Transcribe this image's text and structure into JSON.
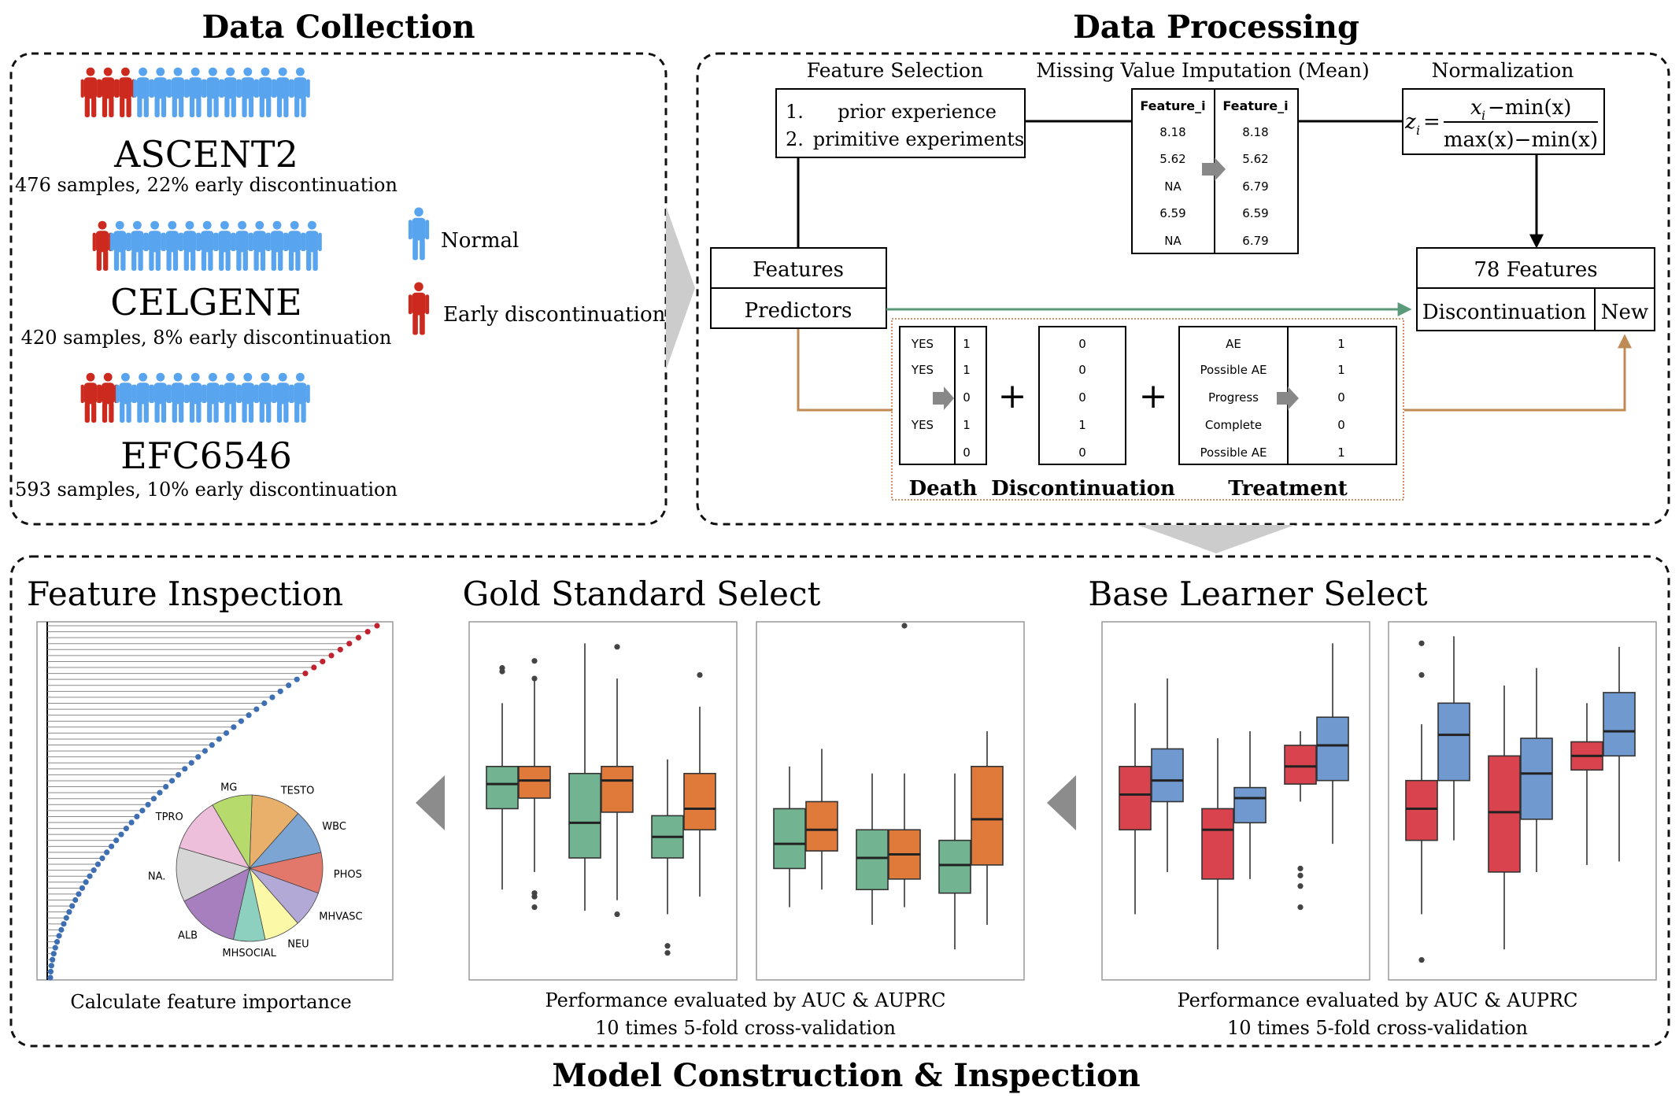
{
  "colors": {
    "early": "#cc2a1e",
    "normal": "#59a4ee",
    "green_box": "#72b391",
    "orange_box": "#e07a3a",
    "red_box": "#d8434d",
    "blue_box": "#6f99cf",
    "pred_green": "#5a9a7a",
    "pred_brown": "#c08a55",
    "gray_arrow": "#cccccc"
  },
  "collection": {
    "title": "Data Collection",
    "datasets": [
      {
        "name": "ASCENT2",
        "desc": "476 samples, 22% early discontinuation",
        "early": 3,
        "normal": 10
      },
      {
        "name": "CELGENE",
        "desc": "420 samples, 8% early discontinuation",
        "early": 1,
        "normal": 12
      },
      {
        "name": "EFC6546",
        "desc": "593 samples, 10% early discontinuation",
        "early": 2,
        "normal": 11
      }
    ],
    "legend": {
      "normal": "Normal",
      "early": "Early discontinuation"
    }
  },
  "processing": {
    "title": "Data Processing",
    "feature_selection": {
      "title": "Feature Selection",
      "items": [
        "1.",
        "prior experience",
        "2.",
        "primitive experiments"
      ]
    },
    "imputation": {
      "title": "Missing Value Imputation (Mean)",
      "col1": "Feature_i",
      "col2": "Feature_i",
      "before": [
        "8.18",
        "5.62",
        "NA",
        "6.59",
        "NA"
      ],
      "after": [
        "8.18",
        "5.62",
        "6.79",
        "6.59",
        "6.79"
      ]
    },
    "normalization": {
      "title": "Normalization",
      "z": "z",
      "sub": "i",
      "eq": "=",
      "num": "x",
      "num_sub": "i",
      "num_rest": "−min(x)",
      "den": "max(x)−min(x)"
    },
    "features_box": {
      "features": "Features",
      "predictors": "Predictors"
    },
    "output_box": {
      "features": "78 Features",
      "discontinuation": "Discontinuation",
      "new": "New"
    },
    "death": {
      "label": "Death",
      "left": [
        "YES",
        "YES",
        "",
        "YES",
        ""
      ],
      "right": [
        "1",
        "1",
        "0",
        "1",
        "0"
      ]
    },
    "discontinuation": {
      "label": "Discontinuation",
      "values": [
        "0",
        "0",
        "0",
        "1",
        "0"
      ]
    },
    "treatment": {
      "label": "Treatment",
      "left": [
        "AE",
        "Possible AE",
        "Progress",
        "Complete",
        "Possible AE"
      ],
      "right": [
        "1",
        "1",
        "0",
        "0",
        "1"
      ]
    },
    "plus": "+"
  },
  "model": {
    "title": "Model Construction & Inspection",
    "inspection": {
      "title": "Feature Inspection",
      "caption": "Calculate feature importance"
    },
    "gold": {
      "title": "Gold Standard Select",
      "caption1": "Performance evaluated by AUC & AUPRC",
      "caption2": "10 times 5-fold cross-validation"
    },
    "base": {
      "title": "Base Learner Select",
      "caption1": "Performance evaluated by AUC & AUPRC",
      "caption2": "10 times 5-fold cross-validation"
    }
  },
  "chart_data": [
    {
      "type": "scatter",
      "name": "feature-importance",
      "title": "",
      "point_count": 60,
      "highlighted_red_count": 9
    },
    {
      "type": "pie",
      "name": "feature-groups",
      "labels": [
        "TESTO",
        "WBC",
        "PHOS",
        "MHVASC",
        "NEU",
        "MHSOCIAL",
        "ALB",
        "NA.",
        "TPRO",
        "MG"
      ],
      "values": [
        11,
        10,
        9,
        8,
        8,
        7,
        14,
        12,
        12,
        9
      ],
      "colors": [
        "#e9b06c",
        "#7ca5d3",
        "#e2776b",
        "#b3a9d6",
        "#fbf9a8",
        "#8ed0c0",
        "#a77fbf",
        "#d6d6d6",
        "#eebfda",
        "#b7da6c"
      ]
    },
    {
      "type": "box",
      "name": "gold-1",
      "series": [
        {
          "color": "green",
          "boxes": [
            {
              "q1": 0.48,
              "med": 0.55,
              "q3": 0.6,
              "wlo": 0.25,
              "whi": 0.78,
              "out": [
                0.87,
                0.88
              ]
            },
            {
              "q1": 0.34,
              "med": 0.44,
              "q3": 0.58,
              "wlo": 0.19,
              "whi": 0.95,
              "out": []
            },
            {
              "q1": 0.34,
              "med": 0.4,
              "q3": 0.46,
              "wlo": 0.18,
              "whi": 0.62,
              "out": [
                0.09,
                0.07
              ]
            }
          ]
        },
        {
          "color": "orange",
          "boxes": [
            {
              "q1": 0.51,
              "med": 0.56,
              "q3": 0.6,
              "wlo": 0.3,
              "whi": 0.85,
              "out": [
                0.9,
                0.85,
                0.2,
                0.23,
                0.24
              ]
            },
            {
              "q1": 0.47,
              "med": 0.56,
              "q3": 0.6,
              "wlo": 0.22,
              "whi": 0.85,
              "out": [
                0.94,
                0.18
              ]
            },
            {
              "q1": 0.42,
              "med": 0.48,
              "q3": 0.58,
              "wlo": 0.23,
              "whi": 0.77,
              "out": [
                0.86
              ]
            }
          ]
        }
      ]
    },
    {
      "type": "box",
      "name": "gold-2",
      "series": [
        {
          "color": "green",
          "boxes": [
            {
              "q1": 0.31,
              "med": 0.38,
              "q3": 0.48,
              "wlo": 0.2,
              "whi": 0.6,
              "out": []
            },
            {
              "q1": 0.25,
              "med": 0.34,
              "q3": 0.42,
              "wlo": 0.15,
              "whi": 0.58,
              "out": []
            },
            {
              "q1": 0.24,
              "med": 0.32,
              "q3": 0.39,
              "wlo": 0.08,
              "whi": 0.58,
              "out": []
            }
          ]
        },
        {
          "color": "orange",
          "boxes": [
            {
              "q1": 0.36,
              "med": 0.42,
              "q3": 0.5,
              "wlo": 0.25,
              "whi": 0.65,
              "out": []
            },
            {
              "q1": 0.28,
              "med": 0.35,
              "q3": 0.42,
              "wlo": 0.2,
              "whi": 0.58,
              "out": [
                1.0
              ]
            },
            {
              "q1": 0.32,
              "med": 0.45,
              "q3": 0.6,
              "wlo": 0.15,
              "whi": 0.7,
              "out": []
            }
          ]
        }
      ]
    },
    {
      "type": "box",
      "name": "base-1",
      "series": [
        {
          "color": "red",
          "boxes": [
            {
              "q1": 0.42,
              "med": 0.52,
              "q3": 0.6,
              "wlo": 0.18,
              "whi": 0.78,
              "out": []
            },
            {
              "q1": 0.28,
              "med": 0.42,
              "q3": 0.48,
              "wlo": 0.08,
              "whi": 0.68,
              "out": []
            },
            {
              "q1": 0.55,
              "med": 0.6,
              "q3": 0.66,
              "wlo": 0.5,
              "whi": 0.7,
              "out": [
                0.29,
                0.31,
                0.26,
                0.2
              ]
            }
          ]
        },
        {
          "color": "blue",
          "boxes": [
            {
              "q1": 0.5,
              "med": 0.56,
              "q3": 0.65,
              "wlo": 0.3,
              "whi": 0.85,
              "out": []
            },
            {
              "q1": 0.44,
              "med": 0.51,
              "q3": 0.54,
              "wlo": 0.28,
              "whi": 0.7,
              "out": []
            },
            {
              "q1": 0.56,
              "med": 0.66,
              "q3": 0.74,
              "wlo": 0.38,
              "whi": 0.95,
              "out": []
            }
          ]
        }
      ]
    },
    {
      "type": "box",
      "name": "base-2",
      "series": [
        {
          "color": "red",
          "boxes": [
            {
              "q1": 0.39,
              "med": 0.48,
              "q3": 0.56,
              "wlo": 0.18,
              "whi": 0.72,
              "out": [
                0.95,
                0.86,
                0.05
              ]
            },
            {
              "q1": 0.3,
              "med": 0.47,
              "q3": 0.63,
              "wlo": 0.08,
              "whi": 0.83,
              "out": []
            },
            {
              "q1": 0.59,
              "med": 0.63,
              "q3": 0.67,
              "wlo": 0.32,
              "whi": 0.78,
              "out": []
            }
          ]
        },
        {
          "color": "blue",
          "boxes": [
            {
              "q1": 0.56,
              "med": 0.69,
              "q3": 0.78,
              "wlo": 0.39,
              "whi": 0.97,
              "out": []
            },
            {
              "q1": 0.45,
              "med": 0.58,
              "q3": 0.68,
              "wlo": 0.3,
              "whi": 0.88,
              "out": []
            },
            {
              "q1": 0.63,
              "med": 0.7,
              "q3": 0.81,
              "wlo": 0.33,
              "whi": 0.94,
              "out": []
            }
          ]
        }
      ]
    }
  ]
}
